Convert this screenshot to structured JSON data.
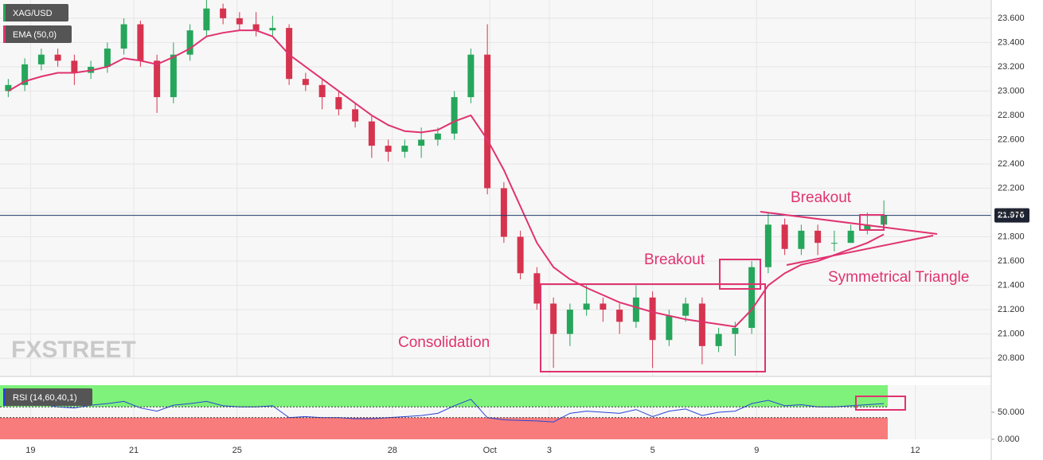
{
  "chart_data": [
    {
      "type": "candlestick",
      "symbol": "XAG/USD",
      "watermark": "FXSTREET",
      "up_color": "#26a65b",
      "down_color": "#d6334f",
      "x": [
        1,
        3,
        5,
        7,
        9,
        11,
        13,
        15,
        17,
        19,
        21,
        23,
        25,
        27,
        29,
        31,
        33,
        35,
        37,
        39,
        41,
        43,
        45,
        47,
        49,
        51,
        53,
        55,
        57,
        59,
        61,
        63,
        65,
        67,
        69,
        71,
        73,
        75,
        77,
        79,
        81,
        83,
        85,
        87,
        89,
        91,
        93,
        95,
        97,
        99,
        101,
        103,
        105,
        107
      ],
      "open": [
        23.0,
        23.05,
        23.22,
        23.3,
        23.25,
        23.15,
        23.2,
        23.35,
        23.55,
        23.25,
        22.95,
        23.3,
        23.5,
        23.68,
        23.6,
        23.55,
        23.5,
        23.52,
        23.1,
        23.05,
        22.95,
        22.85,
        22.75,
        22.55,
        22.5,
        22.55,
        22.6,
        22.65,
        22.95,
        23.3,
        22.2,
        21.8,
        21.5,
        21.25,
        21.0,
        21.2,
        21.25,
        21.2,
        21.1,
        21.3,
        20.95,
        21.15,
        21.25,
        20.9,
        21.0,
        21.05,
        21.55,
        21.9,
        21.7,
        21.85,
        21.75,
        21.75,
        21.85,
        21.9
      ],
      "high": [
        23.1,
        23.27,
        23.35,
        23.35,
        23.3,
        23.25,
        23.4,
        23.6,
        23.58,
        23.3,
        23.4,
        23.55,
        23.75,
        23.72,
        23.65,
        23.65,
        23.62,
        23.55,
        23.15,
        23.1,
        23.0,
        22.9,
        22.8,
        22.6,
        22.6,
        22.7,
        22.7,
        23.0,
        23.35,
        23.55,
        22.25,
        21.85,
        21.55,
        21.3,
        21.25,
        21.4,
        21.3,
        21.25,
        21.4,
        21.35,
        21.2,
        21.3,
        21.3,
        21.05,
        21.1,
        21.6,
        22.0,
        21.95,
        21.9,
        21.9,
        21.85,
        21.9,
        22.0,
        22.1
      ],
      "low": [
        22.95,
        23.0,
        23.17,
        23.2,
        23.05,
        23.1,
        23.15,
        23.3,
        23.2,
        22.82,
        22.9,
        23.25,
        23.45,
        23.55,
        23.5,
        23.45,
        23.45,
        23.05,
        23.0,
        22.85,
        22.8,
        22.7,
        22.45,
        22.42,
        22.45,
        22.45,
        22.55,
        22.6,
        22.9,
        22.15,
        21.75,
        21.45,
        21.2,
        20.72,
        20.9,
        21.15,
        21.1,
        21.0,
        21.05,
        20.72,
        20.9,
        21.1,
        20.75,
        20.85,
        20.82,
        21.0,
        21.5,
        21.65,
        21.65,
        21.65,
        21.68,
        21.75,
        21.82,
        21.88
      ],
      "close": [
        23.05,
        23.22,
        23.3,
        23.25,
        23.15,
        23.2,
        23.35,
        23.55,
        23.25,
        22.95,
        23.3,
        23.5,
        23.68,
        23.6,
        23.55,
        23.5,
        23.52,
        23.1,
        23.05,
        22.95,
        22.85,
        22.75,
        22.55,
        22.5,
        22.55,
        22.6,
        22.65,
        22.95,
        23.3,
        22.2,
        21.8,
        21.5,
        21.25,
        21.0,
        21.2,
        21.25,
        21.2,
        21.1,
        21.3,
        20.95,
        21.15,
        21.25,
        20.9,
        21.0,
        21.05,
        21.55,
        21.9,
        21.7,
        21.85,
        21.75,
        21.75,
        21.85,
        21.9,
        21.976
      ],
      "ema": {
        "name": "EMA (50,0)",
        "color": "#e0336f",
        "values": [
          23.0,
          23.08,
          23.12,
          23.15,
          23.15,
          23.17,
          23.2,
          23.27,
          23.25,
          23.22,
          23.28,
          23.35,
          23.45,
          23.48,
          23.5,
          23.5,
          23.45,
          23.3,
          23.2,
          23.1,
          23.0,
          22.9,
          22.8,
          22.72,
          22.67,
          22.66,
          22.68,
          22.75,
          22.8,
          22.6,
          22.35,
          22.05,
          21.75,
          21.55,
          21.45,
          21.38,
          21.32,
          21.26,
          21.22,
          21.18,
          21.15,
          21.12,
          21.1,
          21.08,
          21.06,
          21.2,
          21.4,
          21.5,
          21.57,
          21.6,
          21.65,
          21.7,
          21.75,
          21.82
        ]
      },
      "last_price": 21.976,
      "xlim": [
        0,
        120
      ],
      "ylim": [
        20.65,
        23.75
      ],
      "xticks": [
        {
          "value": 3.7,
          "label": "19"
        },
        {
          "value": 16.2,
          "label": "21"
        },
        {
          "value": 28.7,
          "label": "25"
        },
        {
          "value": 47.5,
          "label": "28"
        },
        {
          "value": 59.3,
          "label": "Oct"
        },
        {
          "value": 66.5,
          "label": "3"
        },
        {
          "value": 79,
          "label": "5"
        },
        {
          "value": 91.6,
          "label": "9"
        },
        {
          "value": 110.8,
          "label": "12"
        }
      ],
      "yticks": [
        {
          "value": 20.8,
          "label": "20.800"
        },
        {
          "value": 21.0,
          "label": "21.000"
        },
        {
          "value": 21.2,
          "label": "21.200"
        },
        {
          "value": 21.4,
          "label": "21.400"
        },
        {
          "value": 21.6,
          "label": "21.600"
        },
        {
          "value": 21.8,
          "label": "21.800"
        },
        {
          "value": 22.0,
          "label": "22.000"
        },
        {
          "value": 22.2,
          "label": "22.200"
        },
        {
          "value": 22.4,
          "label": "22.400"
        },
        {
          "value": 22.6,
          "label": "22.600"
        },
        {
          "value": 22.8,
          "label": "22.800"
        },
        {
          "value": 23.0,
          "label": "23.000"
        },
        {
          "value": 23.2,
          "label": "23.200"
        },
        {
          "value": 23.4,
          "label": "23.400"
        },
        {
          "value": 23.6,
          "label": "23.600"
        }
      ],
      "grid": true,
      "annotations": [
        "Breakout",
        "Breakout",
        "Symmetrical Triangle",
        "Consolidation"
      ]
    },
    {
      "type": "line",
      "title": "RSI (14,60,40,1)",
      "color": "#2b44d6",
      "x": [
        1,
        3,
        5,
        7,
        9,
        11,
        13,
        15,
        17,
        19,
        21,
        23,
        25,
        27,
        29,
        31,
        33,
        35,
        37,
        39,
        41,
        43,
        45,
        47,
        49,
        51,
        53,
        55,
        57,
        59,
        61,
        63,
        65,
        67,
        69,
        71,
        73,
        75,
        77,
        79,
        81,
        83,
        85,
        87,
        89,
        91,
        93,
        95,
        97,
        99,
        101,
        103,
        105,
        107
      ],
      "values": [
        62,
        68,
        65,
        60,
        58,
        63,
        66,
        70,
        58,
        52,
        63,
        66,
        70,
        62,
        60,
        60,
        62,
        40,
        42,
        40,
        40,
        38,
        38,
        40,
        42,
        44,
        48,
        62,
        74,
        40,
        36,
        35,
        34,
        32,
        48,
        52,
        50,
        48,
        55,
        42,
        52,
        56,
        44,
        50,
        52,
        66,
        72,
        62,
        64,
        60,
        60,
        62,
        64,
        66
      ],
      "upper": 60,
      "lower": 40,
      "upper_color": "#7ef27a",
      "lower_color": "#f87c7c",
      "ylim": [
        0,
        100
      ],
      "yticks": [
        {
          "value": 0,
          "label": "0.000"
        },
        {
          "value": 50,
          "label": "50.000"
        }
      ]
    }
  ]
}
